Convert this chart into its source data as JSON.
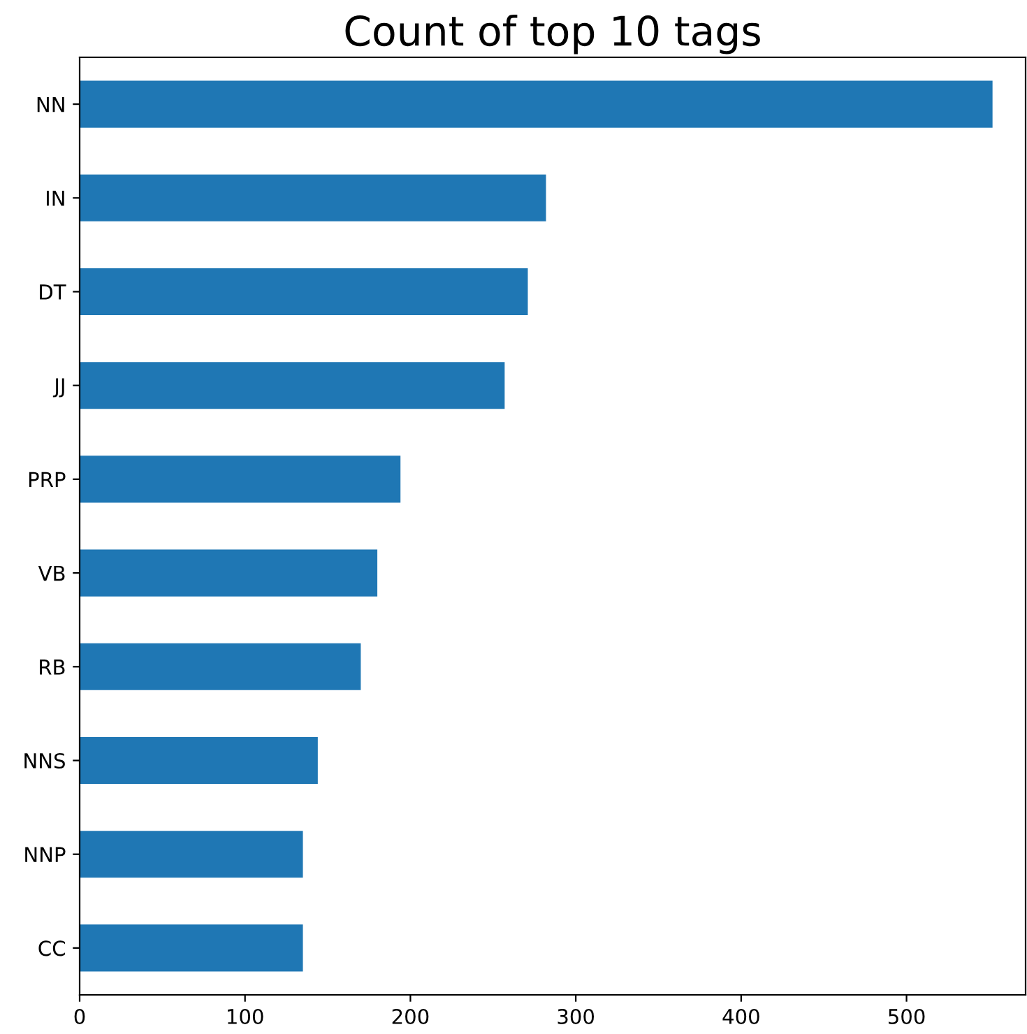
{
  "chart_data": {
    "type": "bar",
    "orientation": "horizontal",
    "title": "Count of top 10 tags",
    "categories": [
      "NN",
      "IN",
      "DT",
      "JJ",
      "PRP",
      "VB",
      "RB",
      "NNS",
      "NNP",
      "CC"
    ],
    "values": [
      552,
      282,
      271,
      257,
      194,
      180,
      170,
      144,
      135,
      135
    ],
    "color": "#1f77b4",
    "xlim": [
      0,
      572
    ],
    "xticks": [
      0,
      100,
      200,
      300,
      400,
      500
    ],
    "grid": false,
    "legend": false
  }
}
